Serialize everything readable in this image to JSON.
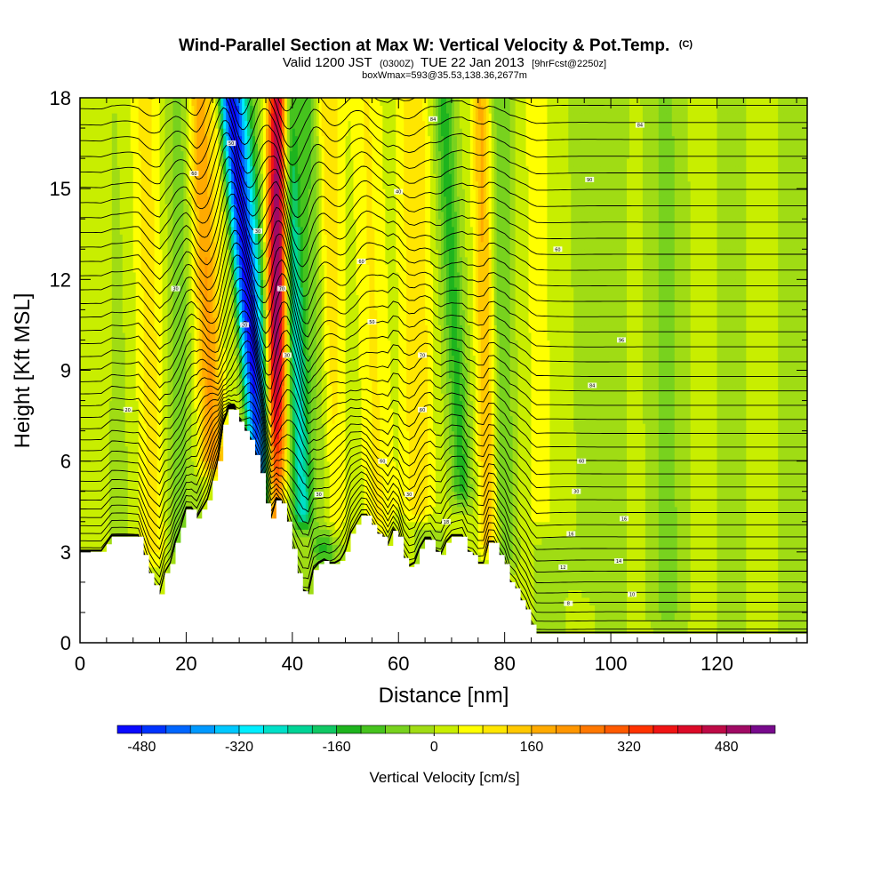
{
  "title": {
    "main": "Wind-Parallel Section at Max W: Vertical Velocity & Pot.Temp.",
    "copyright": "(C)"
  },
  "subtitle": {
    "valid_prefix": "Valid 1200 JST",
    "utc": "(0300Z)",
    "date": "TUE 22 Jan 2013",
    "forecast": "[9hrFcst@2250z]"
  },
  "subtitle2": "boxWmax=593@35.53,138.36,2677m",
  "chart_data": {
    "type": "heatmap",
    "xlabel": "Distance [nm]",
    "ylabel": "Height [Kft MSL]",
    "xlim": [
      0,
      137
    ],
    "ylim": [
      0,
      18
    ],
    "x_ticks": [
      0,
      20,
      40,
      60,
      80,
      100,
      120
    ],
    "y_ticks": [
      0,
      3,
      6,
      9,
      12,
      15,
      18
    ],
    "grid": false,
    "colorbar": {
      "label": "Vertical Velocity [cm/s]",
      "tick_values": [
        -480,
        -320,
        -160,
        0,
        160,
        320,
        480
      ],
      "tick_labels": [
        "-480",
        "-320",
        "-160",
        "0",
        "160",
        "320",
        "480"
      ],
      "range": [
        -520,
        560
      ],
      "bins": [
        {
          "lo": -520,
          "hi": -480,
          "color": "#0a0aff"
        },
        {
          "lo": -480,
          "hi": -440,
          "color": "#0033ff"
        },
        {
          "lo": -440,
          "hi": -400,
          "color": "#0066ff"
        },
        {
          "lo": -400,
          "hi": -360,
          "color": "#0099ff"
        },
        {
          "lo": -360,
          "hi": -320,
          "color": "#00c8ff"
        },
        {
          "lo": -320,
          "hi": -280,
          "color": "#00eeff"
        },
        {
          "lo": -280,
          "hi": -240,
          "color": "#00e0c8"
        },
        {
          "lo": -240,
          "hi": -200,
          "color": "#00d496"
        },
        {
          "lo": -200,
          "hi": -160,
          "color": "#10c864"
        },
        {
          "lo": -160,
          "hi": -120,
          "color": "#1eb41e"
        },
        {
          "lo": -120,
          "hi": -80,
          "color": "#46c31e"
        },
        {
          "lo": -80,
          "hi": -40,
          "color": "#78d21e"
        },
        {
          "lo": -40,
          "hi": 0,
          "color": "#a0dc14"
        },
        {
          "lo": 0,
          "hi": 40,
          "color": "#c8ee00"
        },
        {
          "lo": 40,
          "hi": 80,
          "color": "#ffff00"
        },
        {
          "lo": 80,
          "hi": 120,
          "color": "#ffe600"
        },
        {
          "lo": 120,
          "hi": 160,
          "color": "#ffc800"
        },
        {
          "lo": 160,
          "hi": 200,
          "color": "#ffaa00"
        },
        {
          "lo": 200,
          "hi": 240,
          "color": "#ff9600"
        },
        {
          "lo": 240,
          "hi": 280,
          "color": "#ff7800"
        },
        {
          "lo": 280,
          "hi": 320,
          "color": "#ff5a00"
        },
        {
          "lo": 320,
          "hi": 360,
          "color": "#ff3200"
        },
        {
          "lo": 360,
          "hi": 400,
          "color": "#f01414"
        },
        {
          "lo": 400,
          "hi": 440,
          "color": "#dc0a28"
        },
        {
          "lo": 440,
          "hi": 480,
          "color": "#be0a46"
        },
        {
          "lo": 480,
          "hi": 520,
          "color": "#a00a64"
        },
        {
          "lo": 520,
          "hi": 560,
          "color": "#780a8c"
        }
      ]
    },
    "terrain_profile": [
      [
        0,
        3.0
      ],
      [
        4,
        3.0
      ],
      [
        6,
        3.5
      ],
      [
        11,
        3.5
      ],
      [
        12,
        2.9
      ],
      [
        13,
        2.3
      ],
      [
        14,
        1.9
      ],
      [
        15,
        1.6
      ],
      [
        16,
        2.3
      ],
      [
        17,
        2.6
      ],
      [
        18,
        3.3
      ],
      [
        19,
        3.8
      ],
      [
        20,
        4.4
      ],
      [
        21,
        4.4
      ],
      [
        22,
        4.1
      ],
      [
        24,
        4.7
      ],
      [
        26,
        6.0
      ],
      [
        27,
        7.2
      ],
      [
        28,
        7.7
      ],
      [
        29,
        7.7
      ],
      [
        30,
        7.3
      ],
      [
        31,
        7.0
      ],
      [
        32,
        6.7
      ],
      [
        33,
        6.2
      ],
      [
        34,
        5.6
      ],
      [
        35,
        4.6
      ],
      [
        36,
        4.1
      ],
      [
        37,
        4.7
      ],
      [
        38,
        4.6
      ],
      [
        39,
        4.0
      ],
      [
        40,
        3.1
      ],
      [
        41,
        2.3
      ],
      [
        42,
        1.7
      ],
      [
        43,
        1.6
      ],
      [
        44,
        2.4
      ],
      [
        45,
        2.6
      ],
      [
        46,
        2.7
      ],
      [
        47,
        2.6
      ],
      [
        48,
        2.6
      ],
      [
        49,
        2.7
      ],
      [
        50,
        3.0
      ],
      [
        51,
        3.6
      ],
      [
        52,
        3.9
      ],
      [
        53,
        4.2
      ],
      [
        54,
        4.2
      ],
      [
        55,
        3.9
      ],
      [
        56,
        3.6
      ],
      [
        57,
        3.5
      ],
      [
        58,
        3.2
      ],
      [
        59,
        3.7
      ],
      [
        60,
        3.5
      ],
      [
        61,
        2.8
      ],
      [
        62,
        2.5
      ],
      [
        63,
        2.6
      ],
      [
        64,
        3.1
      ],
      [
        65,
        3.4
      ],
      [
        66,
        3.4
      ],
      [
        67,
        3.0
      ],
      [
        68,
        2.9
      ],
      [
        69,
        3.3
      ],
      [
        70,
        3.5
      ],
      [
        72,
        3.5
      ],
      [
        73,
        3.0
      ],
      [
        74,
        2.9
      ],
      [
        75,
        2.6
      ],
      [
        76,
        2.6
      ],
      [
        77,
        3.3
      ],
      [
        78,
        3.3
      ],
      [
        79,
        2.9
      ],
      [
        80,
        2.6
      ],
      [
        81,
        2.0
      ],
      [
        82,
        1.8
      ],
      [
        83,
        1.4
      ],
      [
        84,
        1.1
      ],
      [
        85,
        0.6
      ],
      [
        86,
        0.3
      ],
      [
        137,
        0.3
      ]
    ],
    "w_field_approx": {
      "base_cm_s": 0,
      "features": [
        {
          "x_bottom": 35.0,
          "x_top": 28.5,
          "amplitude": -500,
          "width": 3.0,
          "z_min": 4.5
        },
        {
          "x_bottom": 36.5,
          "x_top": 37.5,
          "amplitude": 540,
          "width": 2.0,
          "z_min": 4.3
        },
        {
          "x_bottom": 42.0,
          "x_top": 39.0,
          "amplitude": -260,
          "width": 1.8,
          "z_min": 4.2
        },
        {
          "x_bottom": 46.0,
          "x_top": 43.5,
          "amplitude": -140,
          "width": 2.2,
          "z_min": 3.0
        },
        {
          "x_bottom": 25.0,
          "x_top": 22.5,
          "amplitude": 200,
          "width": 2.5,
          "z_min": 6.0
        },
        {
          "x_bottom": 31.0,
          "x_top": 25.5,
          "amplitude": 150,
          "width": 1.4,
          "z_min": 6.5
        },
        {
          "x_bottom": 46.5,
          "x_top": 46.0,
          "amplitude": 140,
          "width": 3.0,
          "z_min": 4.0
        },
        {
          "x_bottom": 14.0,
          "x_top": 12.0,
          "amplitude": 90,
          "width": 3.0,
          "z_min": 3.0
        },
        {
          "x_bottom": 18.0,
          "x_top": 19.0,
          "amplitude": -60,
          "width": 2.5,
          "z_min": 3.0
        },
        {
          "x_bottom": 56.0,
          "x_top": 54.0,
          "amplitude": 90,
          "width": 3.0,
          "z_min": 4.0
        },
        {
          "x_bottom": 64.0,
          "x_top": 63.0,
          "amplitude": 120,
          "width": 3.0,
          "z_min": 4.5
        },
        {
          "x_bottom": 72.0,
          "x_top": 68.5,
          "amplitude": -140,
          "width": 1.8,
          "z_min": 5.0
        },
        {
          "x_bottom": 77.0,
          "x_top": 75.5,
          "amplitude": 170,
          "width": 1.8,
          "z_min": 3.3
        },
        {
          "x_bottom": 80.0,
          "x_top": 79.5,
          "amplitude": -80,
          "width": 2.0,
          "z_min": 3.0
        },
        {
          "x_bottom": 88.0,
          "x_top": 87.0,
          "amplitude": 60,
          "width": 4.0,
          "z_min": 4.0
        },
        {
          "x_bottom": 96.0,
          "x_top": 95.0,
          "amplitude": -40,
          "width": 3.5,
          "z_min": 2.0
        },
        {
          "x_bottom": 110.0,
          "x_top": 109.0,
          "amplitude": -35,
          "width": 4.0,
          "z_min": 1.0
        }
      ]
    },
    "theta_contours": {
      "count": 44,
      "labels": [
        {
          "x": 9.0,
          "z": 7.7,
          "text": "20"
        },
        {
          "x": 18.0,
          "z": 11.7,
          "text": "30"
        },
        {
          "x": 21.5,
          "z": 15.5,
          "text": "60"
        },
        {
          "x": 28.5,
          "z": 16.5,
          "text": "50"
        },
        {
          "x": 31.0,
          "z": 10.5,
          "text": "20"
        },
        {
          "x": 33.5,
          "z": 13.6,
          "text": "30"
        },
        {
          "x": 38.0,
          "z": 11.7,
          "text": "70"
        },
        {
          "x": 39.0,
          "z": 9.5,
          "text": "30"
        },
        {
          "x": 53.0,
          "z": 12.6,
          "text": "60"
        },
        {
          "x": 60.0,
          "z": 14.9,
          "text": "40"
        },
        {
          "x": 66.5,
          "z": 17.3,
          "text": "84"
        },
        {
          "x": 105.5,
          "z": 17.1,
          "text": "84"
        },
        {
          "x": 90.0,
          "z": 13.0,
          "text": "60"
        },
        {
          "x": 96.0,
          "z": 15.3,
          "text": "90"
        },
        {
          "x": 102.0,
          "z": 10.0,
          "text": "96"
        },
        {
          "x": 96.5,
          "z": 8.5,
          "text": "84"
        },
        {
          "x": 94.5,
          "z": 6.0,
          "text": "60"
        },
        {
          "x": 93.5,
          "z": 5.0,
          "text": "30"
        },
        {
          "x": 102.5,
          "z": 4.1,
          "text": "16"
        },
        {
          "x": 92.5,
          "z": 3.6,
          "text": "16"
        },
        {
          "x": 101.5,
          "z": 2.7,
          "text": "14"
        },
        {
          "x": 91.0,
          "z": 2.5,
          "text": "12"
        },
        {
          "x": 104.0,
          "z": 1.6,
          "text": "10"
        },
        {
          "x": 92.0,
          "z": 1.3,
          "text": "8"
        },
        {
          "x": 69.0,
          "z": 4.0,
          "text": "18"
        },
        {
          "x": 62.0,
          "z": 4.9,
          "text": "30"
        },
        {
          "x": 57.0,
          "z": 6.0,
          "text": "60"
        },
        {
          "x": 64.5,
          "z": 7.7,
          "text": "60"
        },
        {
          "x": 64.5,
          "z": 9.5,
          "text": "70"
        },
        {
          "x": 45.0,
          "z": 4.9,
          "text": "30"
        },
        {
          "x": 55.0,
          "z": 10.6,
          "text": "50"
        }
      ]
    }
  }
}
